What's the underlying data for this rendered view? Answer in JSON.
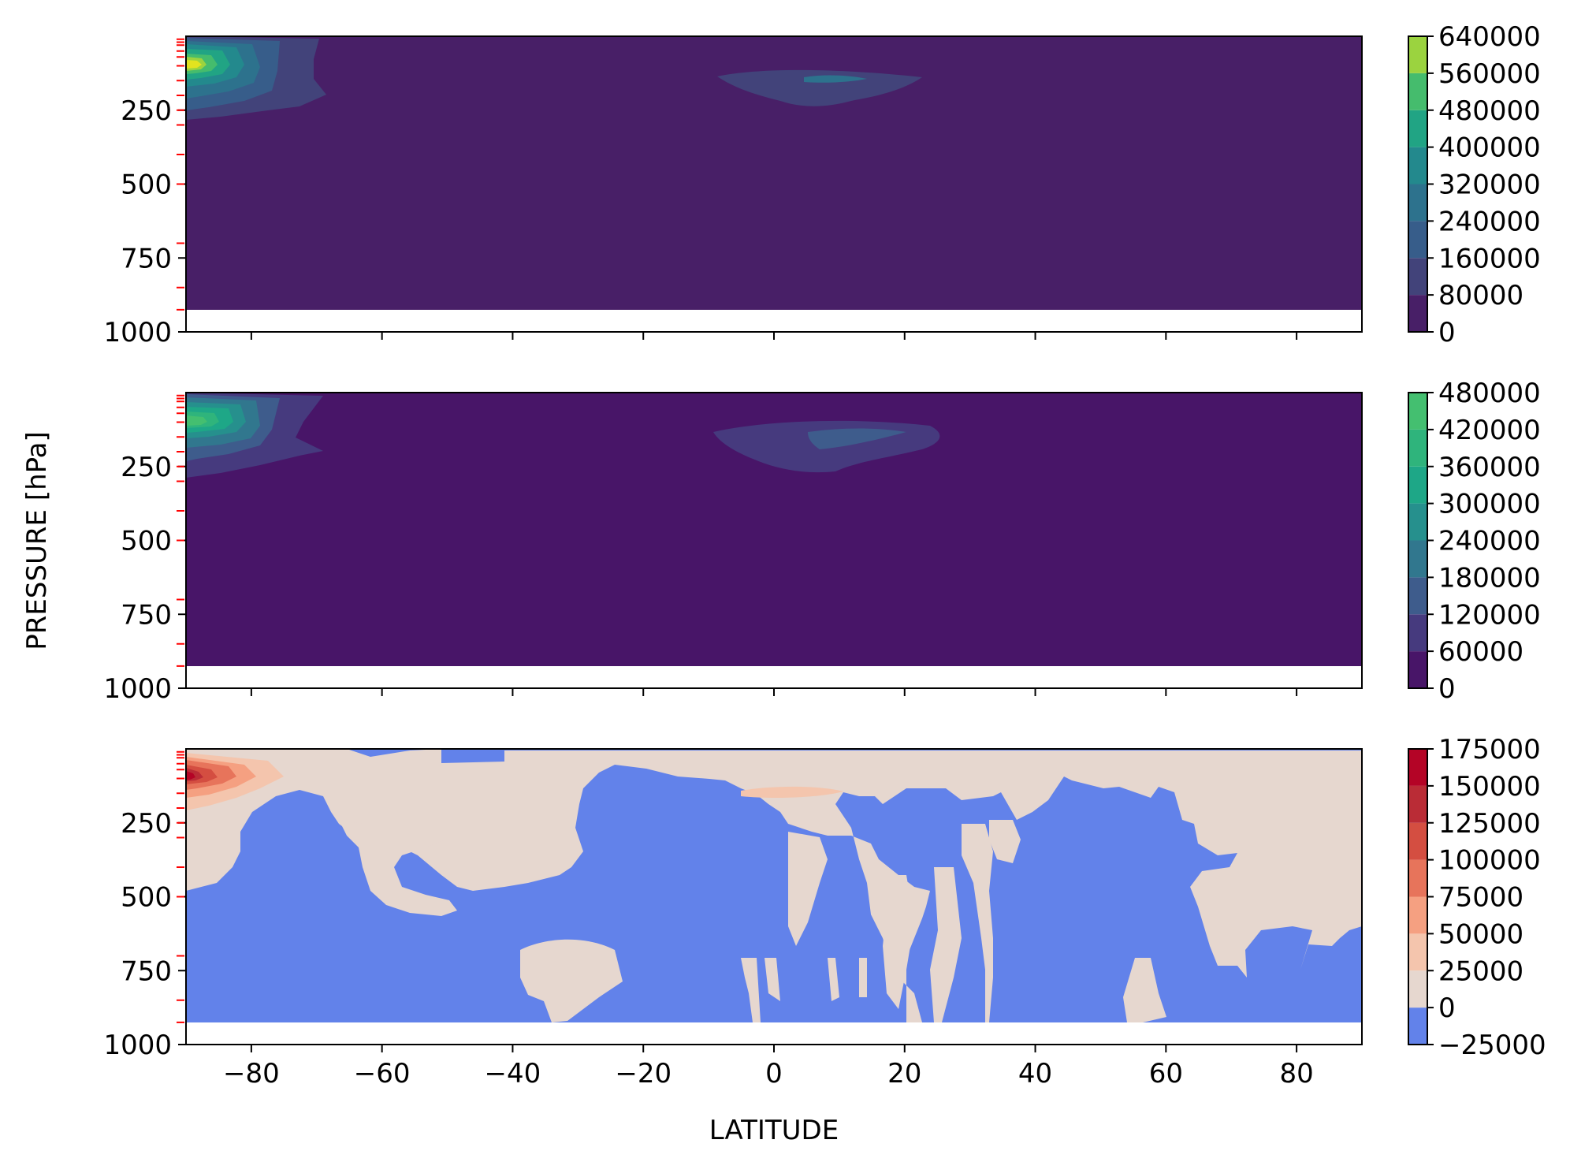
{
  "figure": {
    "ylabel": "PRESSURE [hPa]",
    "xlabel": "LATITUDE"
  },
  "chart_data": [
    {
      "type": "heatmap",
      "panel": "top",
      "xlim": [
        -90,
        90
      ],
      "ylim": [
        1000,
        0
      ],
      "y_ticks": [
        "250",
        "500",
        "750",
        "1000"
      ],
      "x_ticklabels_shown": false,
      "data_bottom_pressure": 925,
      "background_level": 0,
      "colorbar": {
        "colormap": "viridis",
        "ticks": [
          "0",
          "80000",
          "160000",
          "240000",
          "320000",
          "400000",
          "480000",
          "560000",
          "640000"
        ],
        "levels": [
          0,
          80000,
          160000,
          240000,
          320000,
          400000,
          480000,
          560000,
          640000
        ],
        "colors": [
          "#481f67",
          "#42437a",
          "#375d8a",
          "#2d728d",
          "#23898d",
          "#21a484",
          "#45bc6d",
          "#9bd33f",
          "#e2e31f"
        ]
      },
      "features": [
        {
          "lat": -86,
          "pressure": 95,
          "peak": 620000
        },
        {
          "lat": 10,
          "pressure": 125,
          "peak": 200000
        }
      ]
    },
    {
      "type": "heatmap",
      "panel": "middle",
      "xlim": [
        -90,
        90
      ],
      "ylim": [
        1000,
        0
      ],
      "y_ticks": [
        "250",
        "500",
        "750",
        "1000"
      ],
      "x_ticklabels_shown": false,
      "data_bottom_pressure": 925,
      "background_level": 0,
      "colorbar": {
        "colormap": "viridis",
        "ticks": [
          "0",
          "60000",
          "120000",
          "180000",
          "240000",
          "300000",
          "360000",
          "420000",
          "480000"
        ],
        "levels": [
          0,
          60000,
          120000,
          180000,
          240000,
          300000,
          360000,
          420000,
          480000
        ],
        "colors": [
          "#481568",
          "#463a7e",
          "#3e5c8c",
          "#31778e",
          "#26908d",
          "#1ea787",
          "#2fb47c",
          "#44bf70",
          "#5ac864"
        ]
      },
      "features": [
        {
          "lat": -87,
          "pressure": 100,
          "peak": 430000
        },
        {
          "lat": 12,
          "pressure": 165,
          "peak": 130000
        }
      ]
    },
    {
      "type": "heatmap",
      "panel": "bottom",
      "xlim": [
        -90,
        90
      ],
      "ylim": [
        1000,
        0
      ],
      "y_ticks": [
        "250",
        "500",
        "750",
        "1000"
      ],
      "x_ticks": [
        "−80",
        "−60",
        "−40",
        "−20",
        "0",
        "20",
        "40",
        "60",
        "80"
      ],
      "x_tick_values": [
        -80,
        -60,
        -40,
        -20,
        0,
        20,
        40,
        60,
        80
      ],
      "data_bottom_pressure": 925,
      "colorbar": {
        "colormap": "coolwarm",
        "ticks": [
          "−25000",
          "0",
          "25000",
          "50000",
          "75000",
          "100000",
          "125000",
          "150000",
          "175000"
        ],
        "levels": [
          -25000,
          0,
          25000,
          50000,
          75000,
          100000,
          125000,
          150000,
          175000
        ],
        "colors": [
          "#6282ea",
          "#e6d7cf",
          "#f4c5ad",
          "#f5a081",
          "#e7745b",
          "#d44e41",
          "#ba2c36",
          "#b40426"
        ]
      },
      "features": [
        {
          "lat": -87,
          "pressure": 100,
          "peak": 165000
        },
        {
          "lat": 5,
          "pressure": 135,
          "peak": 30000
        }
      ]
    }
  ],
  "tick_colors": {
    "pressure_levels_marker": "#ff0000"
  }
}
